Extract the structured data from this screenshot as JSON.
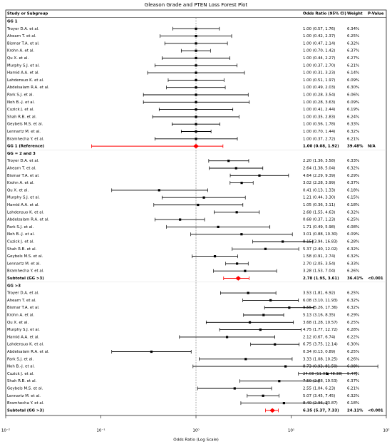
{
  "chart_data": {
    "type": "forest",
    "title": "Gleason Grade and PTEN Loss Forest Plot",
    "columns": [
      "Study or Subgroup",
      "Odds Ratio (95% CI)",
      "Weight",
      "P-Value"
    ],
    "xlabel": "Odds Ratio (Log Scale)",
    "xscale": "log",
    "xlim": [
      0.01,
      100
    ],
    "xticks": [
      {
        "value": 0.01,
        "label": "10⁻²"
      },
      {
        "value": 0.1,
        "label": "10⁻¹"
      },
      {
        "value": 1,
        "label": "10⁰"
      },
      {
        "value": 10,
        "label": "10¹"
      },
      {
        "value": 100,
        "label": "10²"
      }
    ],
    "ref_line": 1,
    "study_color": "#000000",
    "summary_color": "#ff0000",
    "groups": [
      {
        "name": "GG 1",
        "studies": [
          {
            "name": "Troyer D.A. et al.",
            "or": 1.0,
            "lo": 0.57,
            "hi": 1.76,
            "ci": "1.00 (0.57, 1.76)",
            "weight": "6.34%"
          },
          {
            "name": "Ahearn T. et al.",
            "or": 1.0,
            "lo": 0.42,
            "hi": 2.37,
            "ci": "1.00 (0.42, 2.37)",
            "weight": "6.25%"
          },
          {
            "name": "Bismar T.A. et al.",
            "or": 1.0,
            "lo": 0.47,
            "hi": 2.14,
            "ci": "1.00 (0.47, 2.14)",
            "weight": "6.32%"
          },
          {
            "name": "Krohn A. et al.",
            "or": 1.0,
            "lo": 0.7,
            "hi": 1.42,
            "ci": "1.00 (0.70, 1.42)",
            "weight": "6.37%"
          },
          {
            "name": "Qu X. et al.",
            "or": 1.0,
            "lo": 0.44,
            "hi": 2.27,
            "ci": "1.00 (0.44, 2.27)",
            "weight": "6.27%"
          },
          {
            "name": "Murphy S.J. et al.",
            "or": 1.0,
            "lo": 0.37,
            "hi": 2.7,
            "ci": "1.00 (0.37, 2.70)",
            "weight": "6.21%"
          },
          {
            "name": "Hamid A.A. et al.",
            "or": 1.0,
            "lo": 0.31,
            "hi": 3.23,
            "ci": "1.00 (0.31, 3.23)",
            "weight": "6.14%"
          },
          {
            "name": "Lahdensuo K. et al.",
            "or": 1.0,
            "lo": 0.51,
            "hi": 1.97,
            "ci": "1.00 (0.51, 1.97)",
            "weight": "6.09%"
          },
          {
            "name": "Abdelsalam R.A. et al.",
            "or": 1.0,
            "lo": 0.49,
            "hi": 2.03,
            "ci": "1.00 (0.49, 2.03)",
            "weight": "6.30%"
          },
          {
            "name": "Park S.J. et al.",
            "or": 1.0,
            "lo": 0.28,
            "hi": 3.54,
            "ci": "1.00 (0.28, 3.54)",
            "weight": "6.06%"
          },
          {
            "name": "Noh B.-J. et al.",
            "or": 1.0,
            "lo": 0.28,
            "hi": 3.63,
            "ci": "1.00 (0.28, 3.63)",
            "weight": "6.09%"
          },
          {
            "name": "Cuzick J. et al.",
            "or": 1.0,
            "lo": 0.41,
            "hi": 2.44,
            "ci": "1.00 (0.41, 2.44)",
            "weight": "6.19%"
          },
          {
            "name": "Shah R.B. et al.",
            "or": 1.0,
            "lo": 0.35,
            "hi": 2.83,
            "ci": "1.00 (0.35, 2.83)",
            "weight": "6.24%"
          },
          {
            "name": "Geybels M.S. et al.",
            "or": 1.0,
            "lo": 0.56,
            "hi": 1.78,
            "ci": "1.00 (0.56, 1.78)",
            "weight": "6.33%"
          },
          {
            "name": "Lennartz M. et al.",
            "or": 1.0,
            "lo": 0.7,
            "hi": 1.44,
            "ci": "1.00 (0.70, 1.44)",
            "weight": "6.32%"
          },
          {
            "name": "Bramhecha Y. et al.",
            "or": 1.0,
            "lo": 0.37,
            "hi": 2.72,
            "ci": "1.00 (0.37, 2.72)",
            "weight": "6.21%"
          }
        ],
        "summary": {
          "name": "GG 1 (Reference)",
          "or": 1.0,
          "lo": 0.08,
          "hi": 1.92,
          "ci": "1.00 (0.08, 1.92)",
          "weight": "39.48%",
          "p": "N/A"
        }
      },
      {
        "name": "GG = 2 and 3",
        "studies": [
          {
            "name": "Troyer D.A. et al.",
            "or": 2.2,
            "lo": 1.36,
            "hi": 3.58,
            "ci": "2.20 (1.36, 3.58)",
            "weight": "6.33%"
          },
          {
            "name": "Ahearn T. et al.",
            "or": 2.64,
            "lo": 1.38,
            "hi": 5.04,
            "ci": "2.64 (1.38, 5.04)",
            "weight": "6.32%"
          },
          {
            "name": "Bismar T.A. et al.",
            "or": 4.64,
            "lo": 2.29,
            "hi": 9.39,
            "ci": "4.64 (2.29, 9.39)",
            "weight": "6.29%"
          },
          {
            "name": "Krohn A. et al.",
            "or": 3.02,
            "lo": 2.28,
            "hi": 3.99,
            "ci": "3.02 (2.28, 3.99)",
            "weight": "6.37%"
          },
          {
            "name": "Qu X. et al.",
            "or": 0.41,
            "lo": 0.13,
            "hi": 1.33,
            "ci": "0.41 (0.13, 1.33)",
            "weight": "6.18%"
          },
          {
            "name": "Murphy S.J. et al.",
            "or": 1.21,
            "lo": 0.44,
            "hi": 3.3,
            "ci": "1.21 (0.44, 3.30)",
            "weight": "6.15%"
          },
          {
            "name": "Hamid A.A. et al.",
            "or": 1.05,
            "lo": 0.36,
            "hi": 3.11,
            "ci": "1.05 (0.36, 3.11)",
            "weight": "6.18%"
          },
          {
            "name": "Lahdensuo K. et al.",
            "or": 2.68,
            "lo": 1.55,
            "hi": 4.63,
            "ci": "2.68 (1.55, 4.63)",
            "weight": "6.32%"
          },
          {
            "name": "Abdelsalam R.A. et al.",
            "or": 0.68,
            "lo": 0.37,
            "hi": 1.23,
            "ci": "0.68 (0.37, 1.23)",
            "weight": "6.25%"
          },
          {
            "name": "Park S.J. et al.",
            "or": 1.71,
            "lo": 0.49,
            "hi": 5.98,
            "ci": "1.71 (0.49, 5.98)",
            "weight": "6.08%"
          },
          {
            "name": "Noh B.-J. et al.",
            "or": 3.01,
            "lo": 0.88,
            "hi": 10.3,
            "ci": "3.01 (0.88, 10.30)",
            "weight": "6.09%"
          },
          {
            "name": "Cuzick J. et al.",
            "or": 8.15,
            "lo": 3.94,
            "hi": 16.83,
            "ci": "8.15 (3.94, 16.83)",
            "weight": "6.28%"
          },
          {
            "name": "Shah R.B. et al.",
            "or": 5.37,
            "lo": 2.4,
            "hi": 12.02,
            "ci": "5.37 (2.40, 12.02)",
            "weight": "6.32%"
          },
          {
            "name": "Geybels M.S. et al.",
            "or": 1.58,
            "lo": 0.91,
            "hi": 2.74,
            "ci": "1.58 (0.91, 2.74)",
            "weight": "6.32%"
          },
          {
            "name": "Lennartz M. et al.",
            "or": 2.7,
            "lo": 2.05,
            "hi": 3.54,
            "ci": "2.70 (2.05, 3.54)",
            "weight": "6.33%"
          },
          {
            "name": "Bramhecha Y. et al.",
            "or": 3.28,
            "lo": 1.53,
            "hi": 7.04,
            "ci": "3.28 (1.53, 7.04)",
            "weight": "6.26%"
          }
        ],
        "summary": {
          "name": "Subtotal (GG >3)",
          "or": 2.78,
          "lo": 1.95,
          "hi": 3.61,
          "ci": "2.78 (1.95, 3.61)",
          "weight": "36.41%",
          "p": "<0.001"
        }
      },
      {
        "name": "GG >3",
        "studies": [
          {
            "name": "Troyer D.A. et al.",
            "or": 3.53,
            "lo": 1.81,
            "hi": 6.92,
            "ci": "3.53 (1.81, 6.92)",
            "weight": "6.25%"
          },
          {
            "name": "Ahearn T. et al.",
            "or": 6.08,
            "lo": 3.1,
            "hi": 11.93,
            "ci": "6.08 (3.10, 11.93)",
            "weight": "6.32%"
          },
          {
            "name": "Bismar T.A. et al.",
            "or": 9.55,
            "lo": 5.26,
            "hi": 17.36,
            "ci": "9.55 (5.26, 17.36)",
            "weight": "6.32%"
          },
          {
            "name": "Krohn A. et al.",
            "or": 5.13,
            "lo": 3.16,
            "hi": 8.35,
            "ci": "5.13 (3.16, 8.35)",
            "weight": "6.29%"
          },
          {
            "name": "Qu X. et al.",
            "or": 3.68,
            "lo": 1.28,
            "hi": 10.57,
            "ci": "3.68 (1.28, 10.57)",
            "weight": "6.25%"
          },
          {
            "name": "Murphy S.J. et al.",
            "or": 4.75,
            "lo": 1.77,
            "hi": 12.72,
            "ci": "4.75 (1.77, 12.72)",
            "weight": "6.28%"
          },
          {
            "name": "Hamid A.A. et al.",
            "or": 2.12,
            "lo": 0.67,
            "hi": 6.74,
            "ci": "2.12 (0.67, 6.74)",
            "weight": "6.22%"
          },
          {
            "name": "Lahdensuo K. et al.",
            "or": 6.75,
            "lo": 3.75,
            "hi": 12.14,
            "ci": "6.75 (3.75, 12.14)",
            "weight": "6.30%"
          },
          {
            "name": "Abdelsalam R.A. et al.",
            "or": 0.34,
            "lo": 0.13,
            "hi": 0.89,
            "ci": "0.34 (0.13, 0.89)",
            "weight": "6.25%"
          },
          {
            "name": "Park S.J. et al.",
            "or": 3.33,
            "lo": 1.08,
            "hi": 10.25,
            "ci": "3.33 (1.08, 10.25)",
            "weight": "6.26%"
          },
          {
            "name": "Noh B.-J. et al.",
            "or": 8.73,
            "lo": 0.93,
            "hi": 81.5,
            "ci": "8.73 (0.93, 81.50)",
            "weight": "6.08%"
          },
          {
            "name": "Cuzick J. et al.",
            "or": 24.03,
            "lo": 11.93,
            "hi": 48.38,
            "ci": "24.03 (11.93, 48.38)",
            "weight": "5.47%"
          },
          {
            "name": "Shah R.B. et al.",
            "or": 7.5,
            "lo": 2.88,
            "hi": 19.53,
            "ci": "7.50 (2.88, 19.53)",
            "weight": "6.37%"
          },
          {
            "name": "Geybels M.S. et al.",
            "or": 2.55,
            "lo": 1.04,
            "hi": 6.23,
            "ci": "2.55 (1.04, 6.23)",
            "weight": "6.21%"
          },
          {
            "name": "Lennartz M. et al.",
            "or": 5.07,
            "lo": 3.45,
            "hi": 7.45,
            "ci": "5.07 (3.45, 7.45)",
            "weight": "6.32%"
          },
          {
            "name": "Bramhecha Y. et al.",
            "or": 8.4,
            "lo": 2.96,
            "hi": 23.87,
            "ci": "8.40 (2.96, 23.87)",
            "weight": "6.18%"
          }
        ],
        "summary": {
          "name": "Subtotal (GG >3)",
          "or": 6.35,
          "lo": 5.37,
          "hi": 7.33,
          "ci": "6.35 (5.37, 7.33)",
          "weight": "24.11%",
          "p": "<0.001"
        }
      }
    ]
  }
}
